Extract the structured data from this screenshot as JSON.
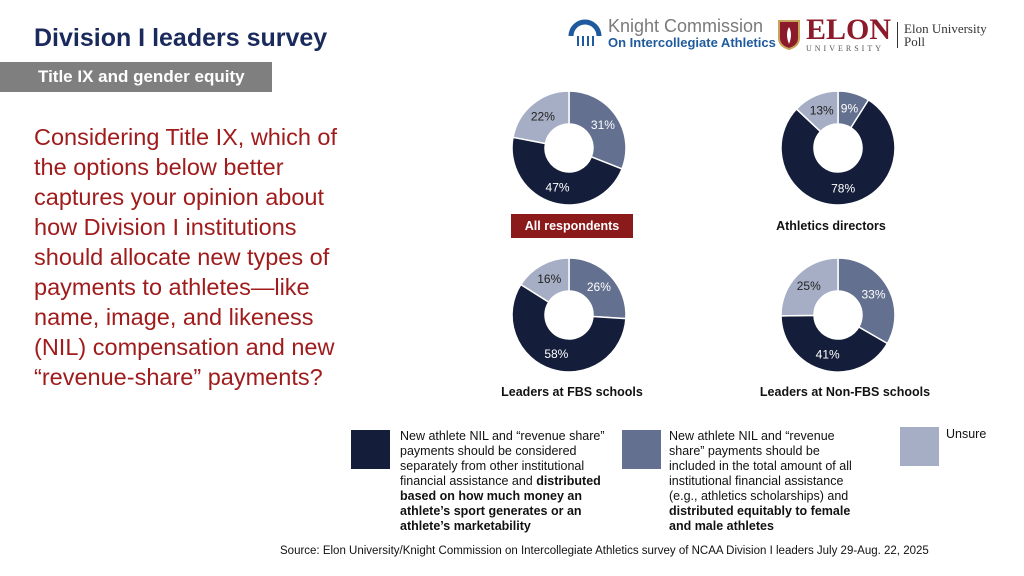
{
  "header": {
    "title": "Division I leaders survey",
    "section": "Title IX and gender equity"
  },
  "logos": {
    "knight_line1": "Knight Commission",
    "knight_line2": "On Intercollegiate Athletics",
    "elon_name": "ELON",
    "elon_sub": "UNIVERSITY",
    "elon_poll": "Elon University Poll"
  },
  "question": "Considering Title IX, which of the options below better captures your opinion about how Division I institutions should allocate new types of payments to athletes—like name, image, and likeness (NIL) compensation and new “revenue-share” payments?",
  "colors": {
    "separate": "#141e3a",
    "included": "#64708f",
    "unsure": "#a5aec4",
    "accent": "#8b1a1a"
  },
  "chart_data": [
    {
      "type": "pie",
      "title": "All respondents",
      "categories": [
        "Included in total",
        "Separately",
        "Unsure"
      ],
      "values": [
        31,
        47,
        22
      ]
    },
    {
      "type": "pie",
      "title": "Athletics directors",
      "categories": [
        "Included in total",
        "Separately",
        "Unsure"
      ],
      "values": [
        9,
        78,
        13
      ]
    },
    {
      "type": "pie",
      "title": "Leaders at FBS schools",
      "categories": [
        "Included in total",
        "Separately",
        "Unsure"
      ],
      "values": [
        26,
        58,
        16
      ]
    },
    {
      "type": "pie",
      "title": "Leaders at Non-FBS schools",
      "categories": [
        "Included in total",
        "Separately",
        "Unsure"
      ],
      "values": [
        33,
        41,
        25
      ]
    }
  ],
  "legend": {
    "separate_plain": "New athlete NIL and “revenue share” payments should be considered separately from other institutional financial assistance and ",
    "separate_bold": "distributed based on how much money an athlete’s sport generates or an athlete’s marketability",
    "included_plain": "New athlete NIL and “revenue share” payments should be included in the total amount of all institutional financial assistance (e.g., athletics scholarships) and ",
    "included_bold": "distributed equitably to female and male athletes",
    "unsure": "Unsure"
  },
  "source": "Source: Elon University/Knight Commission on Intercollegiate Athletics survey of NCAA Division I leaders July 29-Aug. 22, 2025"
}
